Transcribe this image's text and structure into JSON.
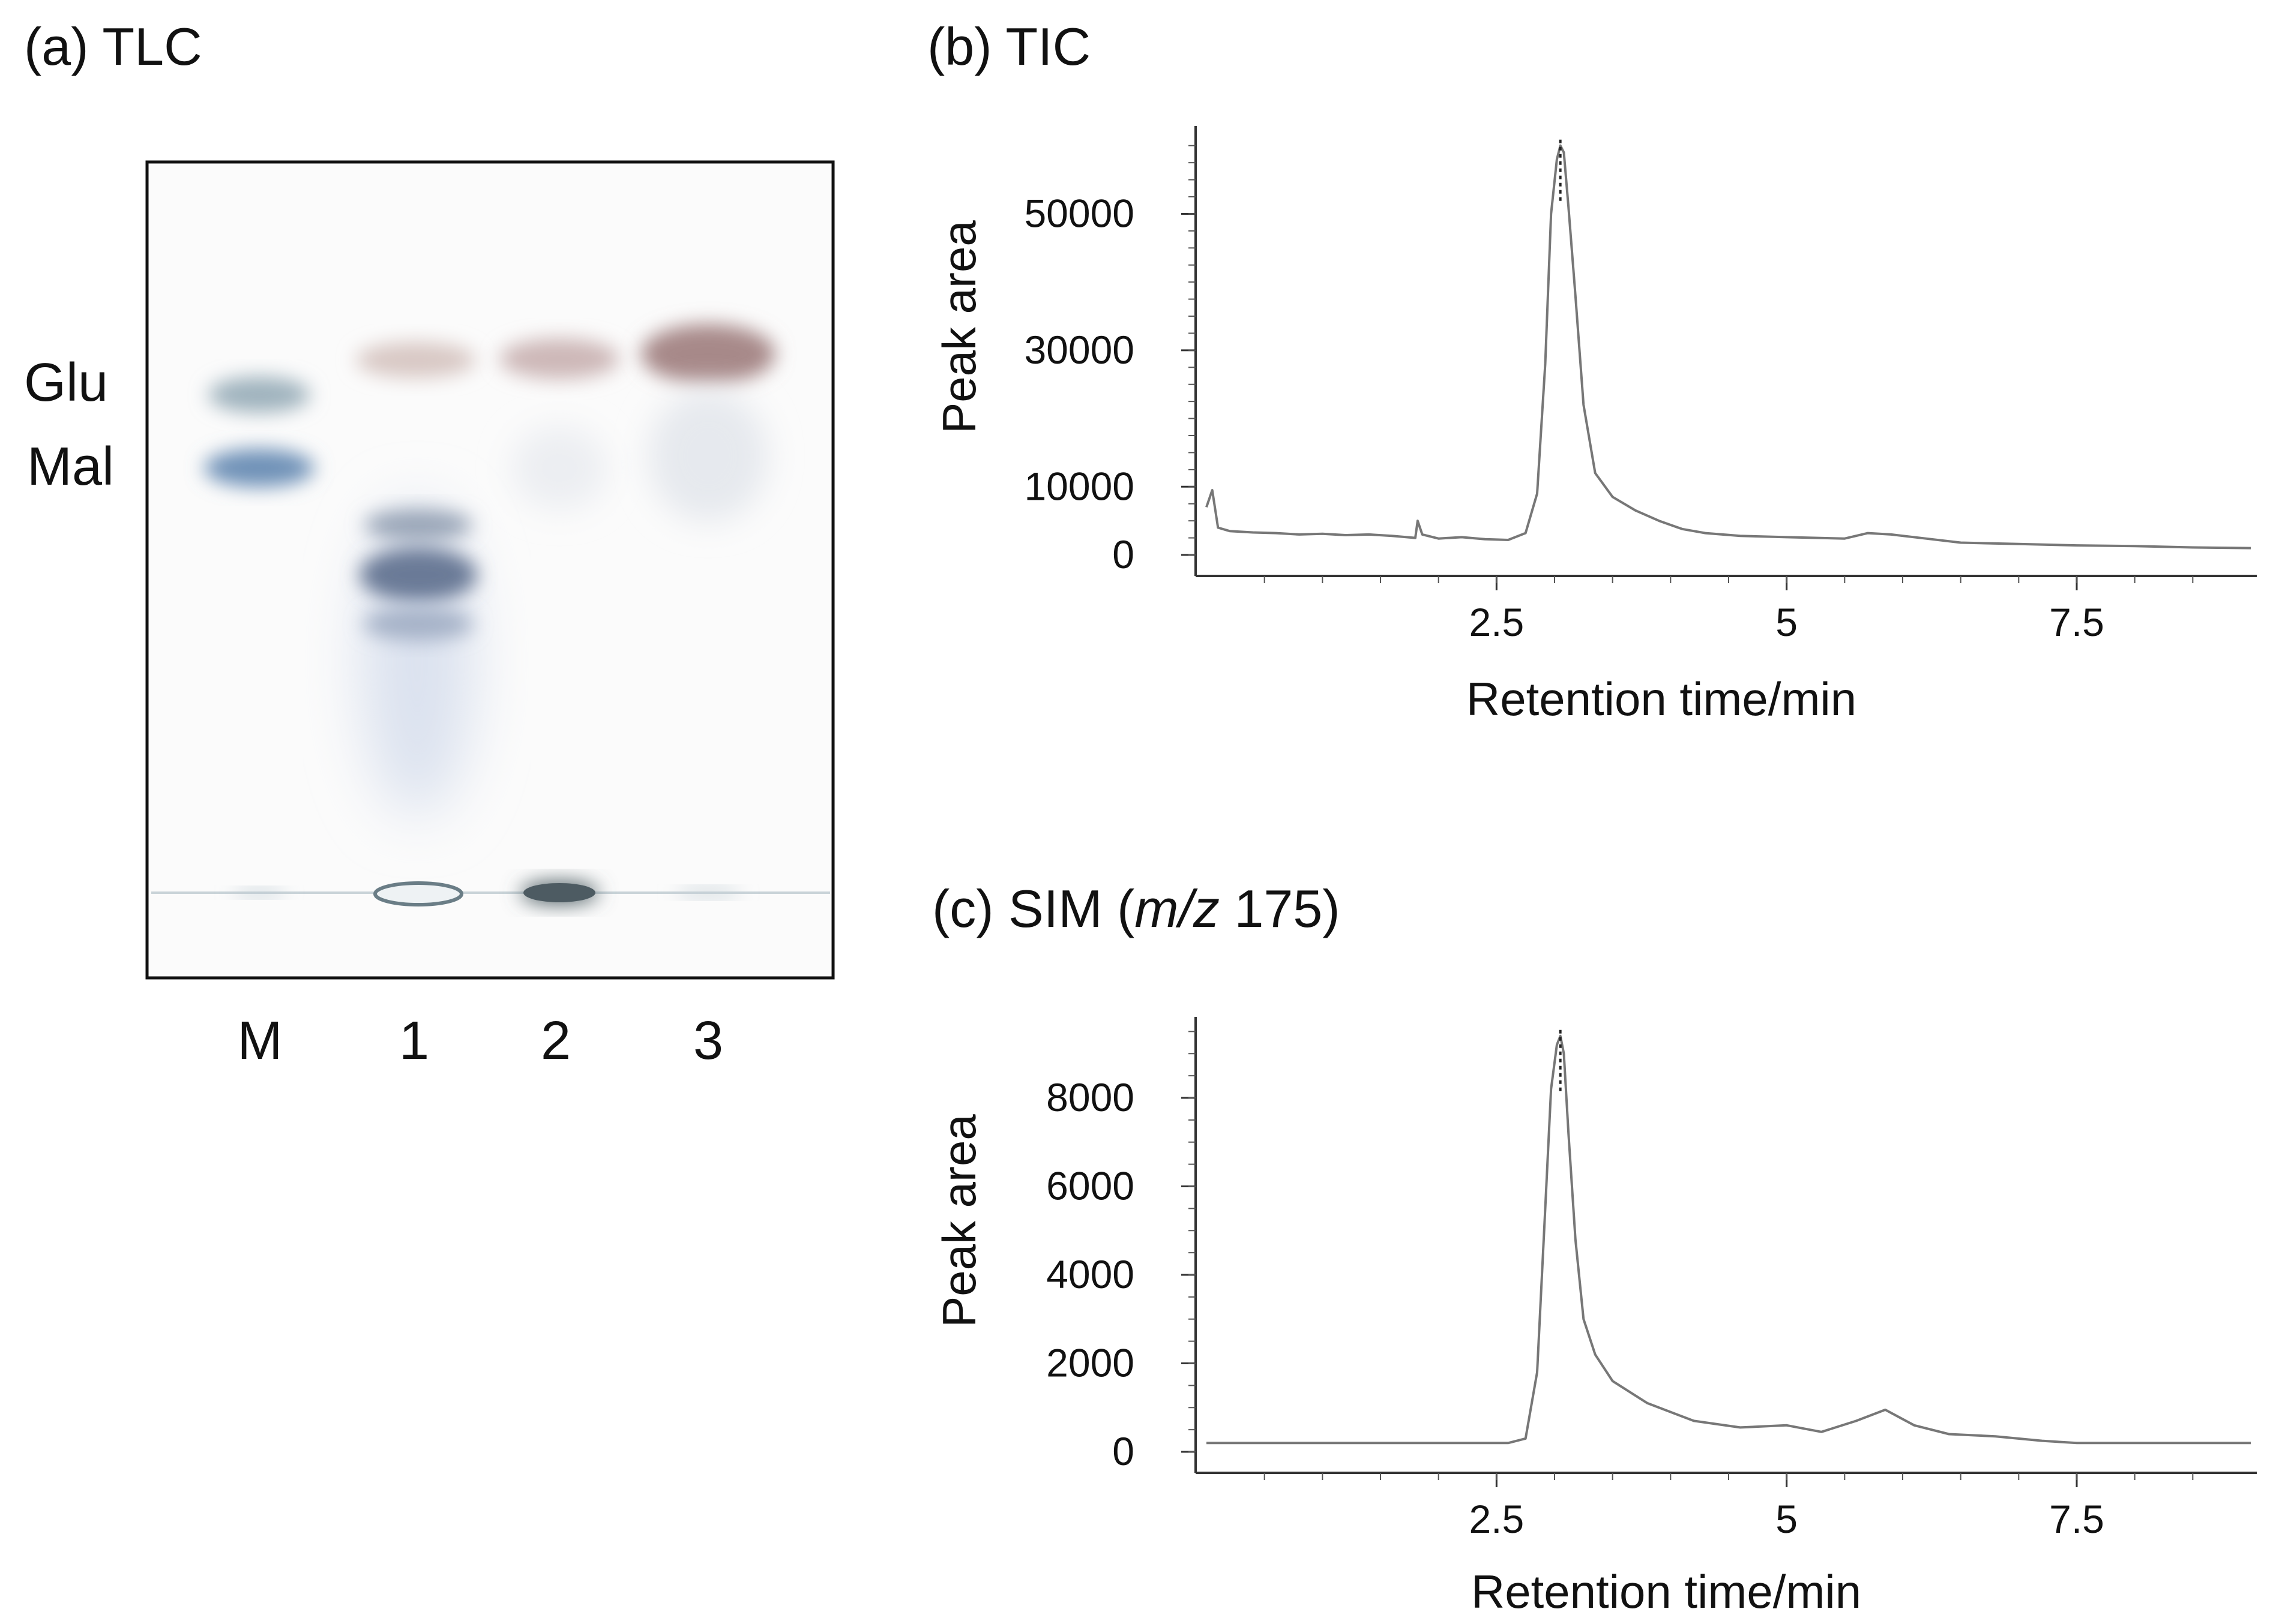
{
  "figure": {
    "panel_a": {
      "title": "(a) TLC",
      "markers": [
        "Glu",
        "Mal"
      ],
      "lanes": [
        "M",
        "1",
        "2",
        "3"
      ]
    },
    "panel_b": {
      "title": "(b) TIC"
    },
    "panel_c": {
      "title_prefix": "(c) SIM (",
      "title_italic": "m/z",
      "title_suffix": " 175)"
    }
  },
  "chart_data": [
    {
      "id": "tic",
      "type": "line",
      "title": "(b) TIC",
      "xlabel": "Retention time/min",
      "ylabel": "Peak area",
      "xlim": [
        0,
        9
      ],
      "ylim": [
        0,
        62000
      ],
      "xticks": [
        2.5,
        5,
        7.5
      ],
      "xtick_labels": [
        "2.5",
        "5",
        "7.5"
      ],
      "yticks": [
        0,
        10000,
        30000,
        50000
      ],
      "ytick_labels": [
        "0",
        "10000",
        "30000",
        "50000"
      ],
      "peak_marker_x": 3.05,
      "x": [
        0,
        0.05,
        0.1,
        0.2,
        0.4,
        0.6,
        0.8,
        1.0,
        1.2,
        1.4,
        1.6,
        1.8,
        1.82,
        1.86,
        2.0,
        2.2,
        2.4,
        2.6,
        2.75,
        2.85,
        2.92,
        2.97,
        3.02,
        3.05,
        3.08,
        3.12,
        3.18,
        3.25,
        3.35,
        3.5,
        3.7,
        3.9,
        4.1,
        4.3,
        4.6,
        5.0,
        5.5,
        5.7,
        5.9,
        6.2,
        6.5,
        7.0,
        7.5,
        8.0,
        8.5,
        9.0
      ],
      "y": [
        7000,
        9500,
        4000,
        3500,
        3300,
        3200,
        3000,
        3100,
        2900,
        3000,
        2800,
        2500,
        5000,
        3000,
        2400,
        2600,
        2300,
        2200,
        3200,
        9000,
        28000,
        50000,
        58000,
        60000,
        59000,
        51000,
        38000,
        22000,
        12000,
        8500,
        6500,
        5000,
        3800,
        3200,
        2800,
        2600,
        2400,
        3200,
        3000,
        2400,
        1800,
        1600,
        1400,
        1300,
        1100,
        1000
      ]
    },
    {
      "id": "sim",
      "type": "line",
      "title": "(c) SIM (m/z 175)",
      "xlabel": "Retention time/min",
      "ylabel": "Peak area",
      "xlim": [
        0,
        9
      ],
      "ylim": [
        0,
        9600
      ],
      "xticks": [
        2.5,
        5,
        7.5
      ],
      "xtick_labels": [
        "2.5",
        "5",
        "7.5"
      ],
      "yticks": [
        0,
        2000,
        4000,
        6000,
        8000
      ],
      "ytick_labels": [
        "0",
        "2000",
        "4000",
        "6000",
        "8000"
      ],
      "peak_marker_x": 3.05,
      "x": [
        0,
        1.0,
        2.0,
        2.6,
        2.75,
        2.85,
        2.92,
        2.97,
        3.02,
        3.05,
        3.08,
        3.12,
        3.18,
        3.25,
        3.35,
        3.5,
        3.8,
        4.2,
        4.6,
        5.0,
        5.3,
        5.6,
        5.85,
        6.1,
        6.4,
        6.8,
        7.2,
        7.5,
        8.0,
        9.0
      ],
      "y": [
        200,
        200,
        200,
        200,
        300,
        1800,
        5500,
        8200,
        9200,
        9400,
        9000,
        7200,
        4800,
        3000,
        2200,
        1600,
        1100,
        700,
        550,
        600,
        450,
        700,
        950,
        600,
        400,
        350,
        250,
        200,
        200,
        200
      ]
    }
  ]
}
